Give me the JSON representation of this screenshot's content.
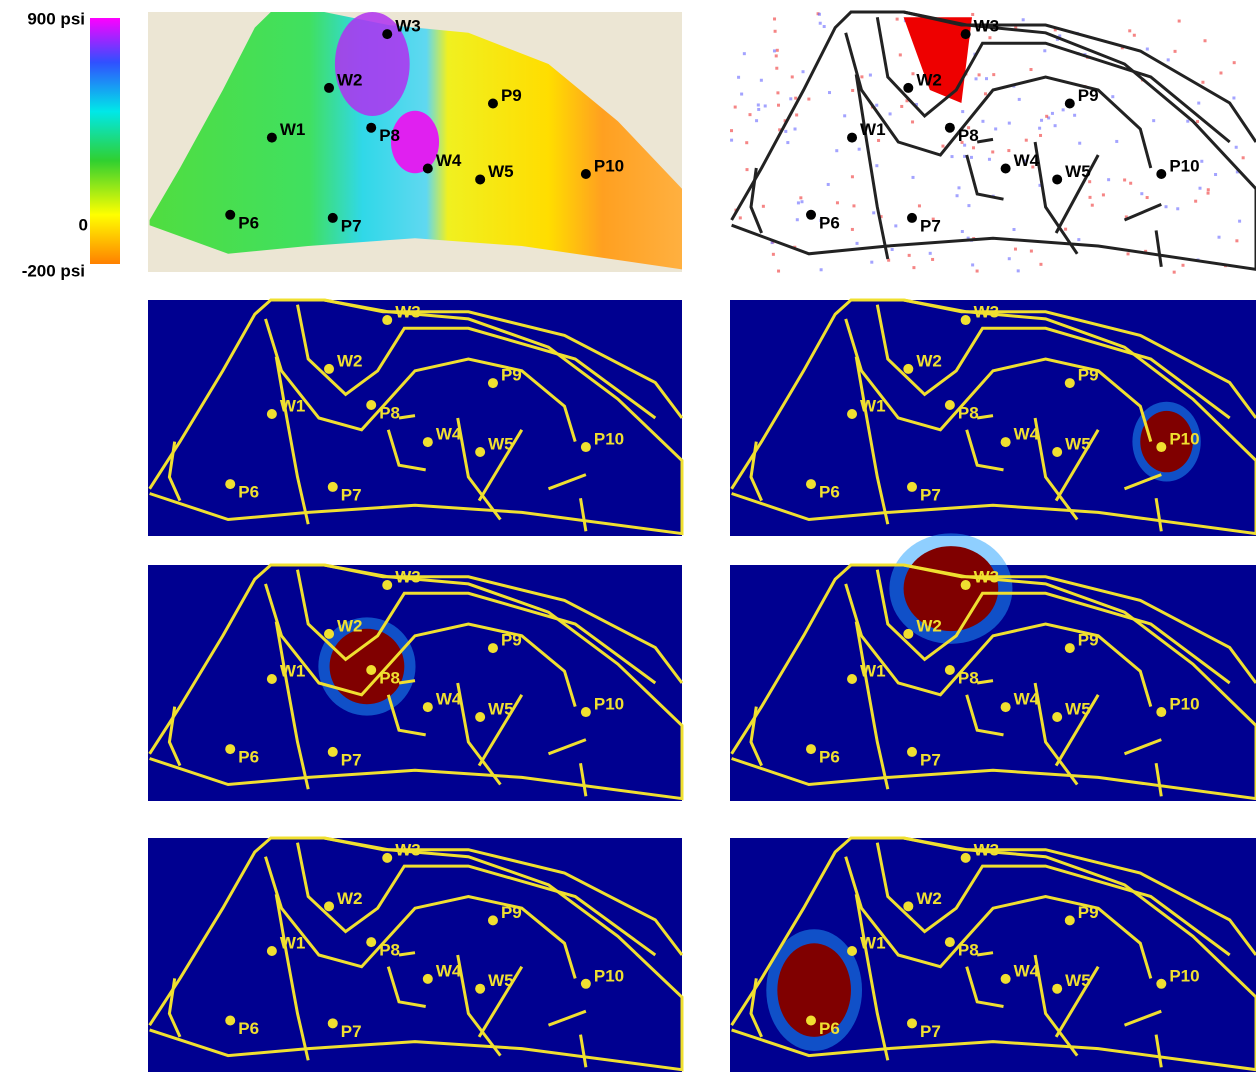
{
  "colorbar": {
    "max_label": "900 psi",
    "zero_label": "0",
    "min_label": "-200 psi"
  },
  "panels": [
    {
      "wells": [
        "W1",
        "W2",
        "W3",
        "W4",
        "W5",
        "P6",
        "P7",
        "P8",
        "P9",
        "P10"
      ]
    },
    {
      "wells": [
        "W1",
        "W2",
        "W3",
        "W4",
        "W5",
        "P6",
        "P7",
        "P8",
        "P9",
        "P10"
      ]
    },
    {
      "wells": [
        "W1",
        "W2",
        "W3",
        "W4",
        "W5",
        "P6",
        "P7",
        "P8",
        "P9",
        "P10"
      ]
    },
    {
      "wells": [
        "W1",
        "W2",
        "W3",
        "W4",
        "W5",
        "P6",
        "P7",
        "P8",
        "P9",
        "P10"
      ]
    },
    {
      "wells": [
        "W1",
        "W2",
        "W3",
        "W4",
        "W5",
        "P6",
        "P7",
        "P8",
        "P9",
        "P10"
      ]
    },
    {
      "wells": [
        "W1",
        "W2",
        "W3",
        "W4",
        "W5",
        "P6",
        "P7",
        "P8",
        "P9",
        "P10"
      ]
    },
    {
      "wells": [
        "W1",
        "W2",
        "W3",
        "W4",
        "W5",
        "P6",
        "P7",
        "P8",
        "P9",
        "P10"
      ]
    },
    {
      "wells": [
        "W1",
        "W2",
        "W3",
        "W4",
        "W5",
        "P6",
        "P7",
        "P8",
        "P9",
        "P10"
      ]
    }
  ]
}
